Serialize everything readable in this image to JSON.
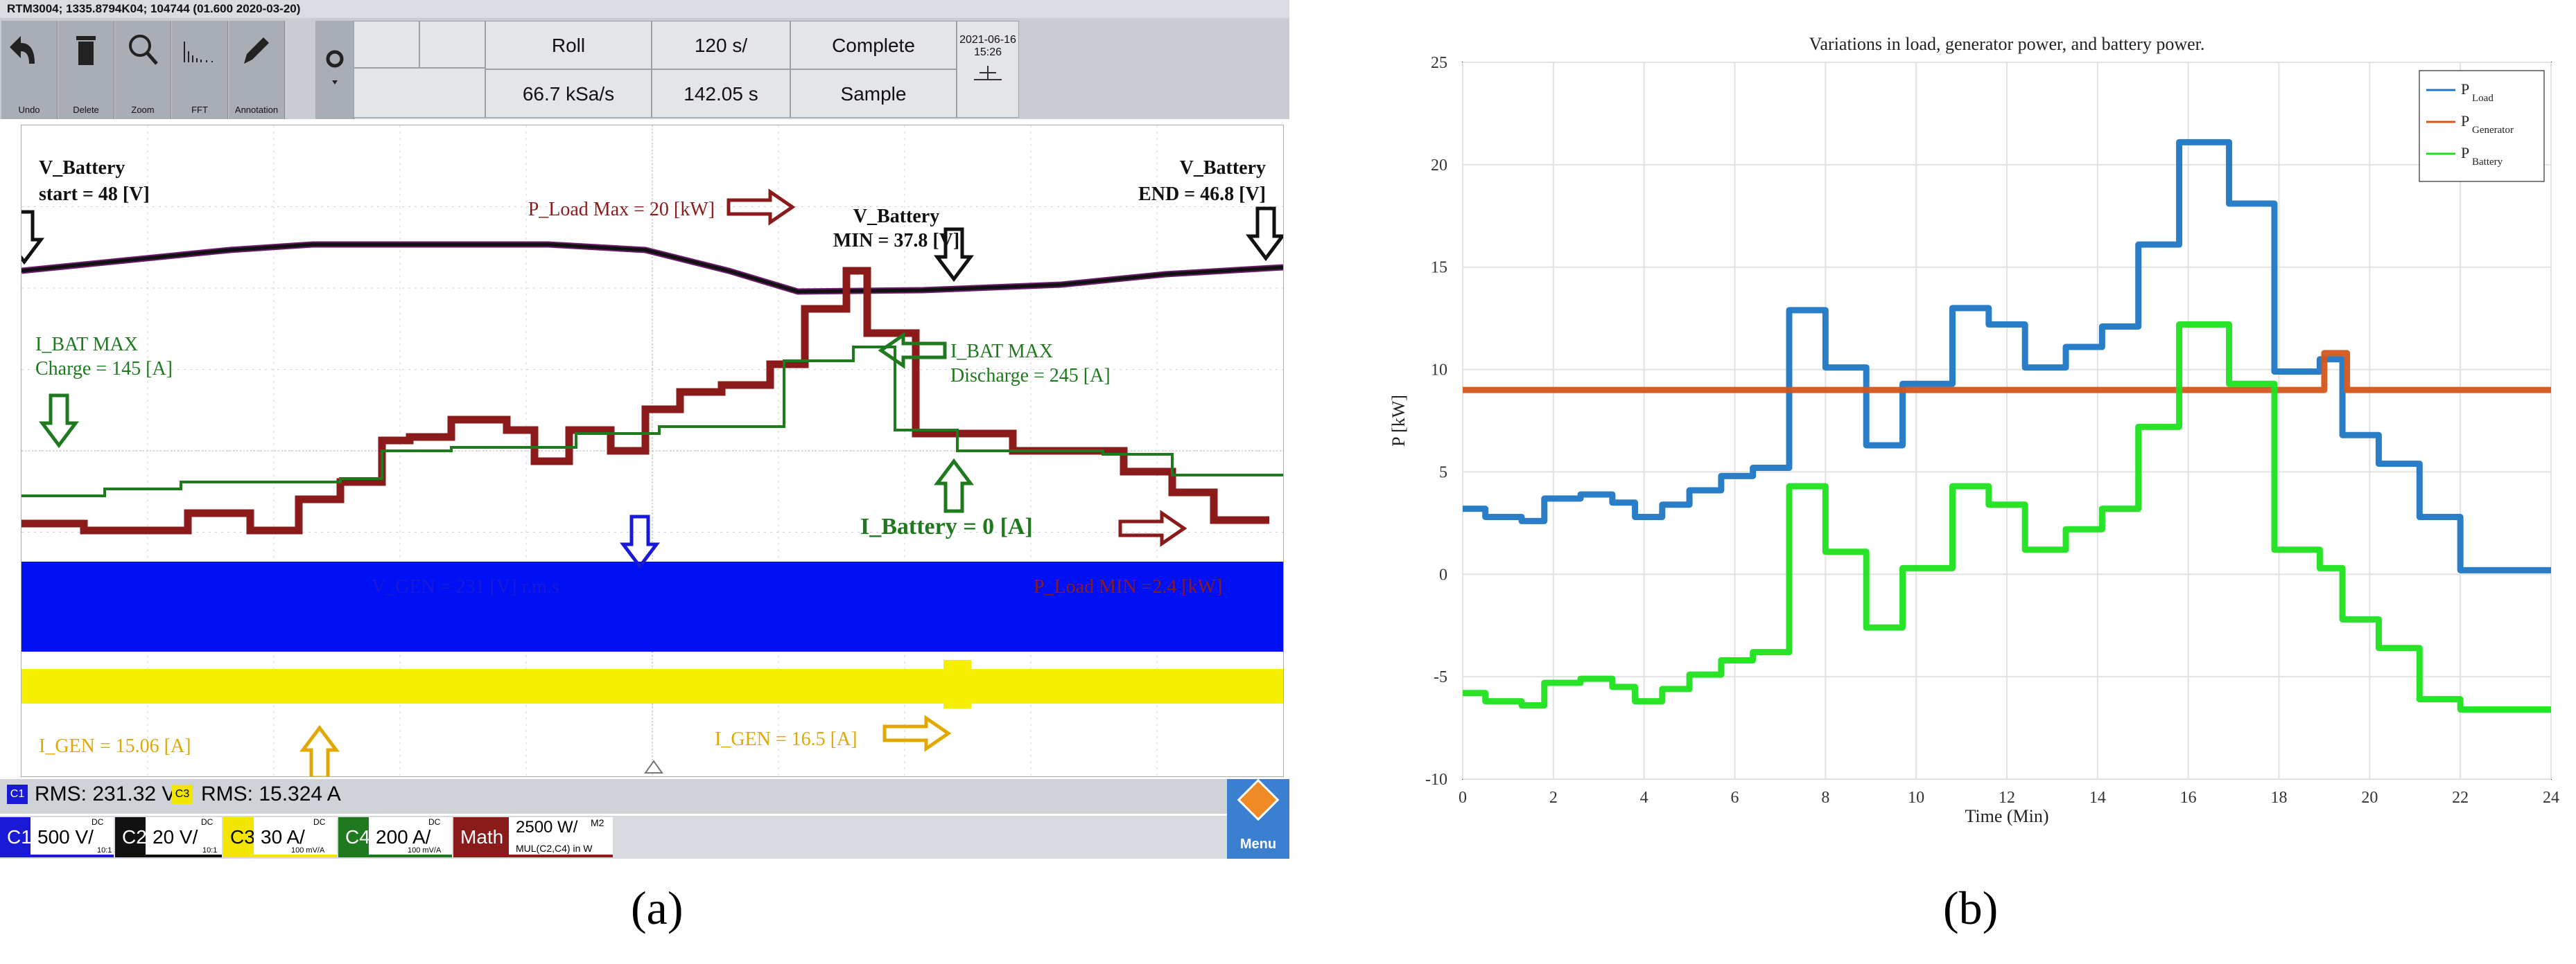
{
  "panel_labels": {
    "a": "(a)",
    "b": "(b)"
  },
  "scope": {
    "title": "RTM3004; 1335.8794K04; 104744 (01.600 2020-03-20)",
    "toolbar": [
      {
        "label": "Undo",
        "icon": "undo-icon"
      },
      {
        "label": "Delete",
        "icon": "trash-icon"
      },
      {
        "label": "Zoom",
        "icon": "zoom-icon"
      },
      {
        "label": "FFT",
        "icon": "fft-icon"
      },
      {
        "label": "Annotation",
        "icon": "pencil-icon"
      }
    ],
    "acq": {
      "mode": "Roll",
      "rate": "66.7 kSa/s",
      "timebase": "120 s/",
      "position": "142.05 s",
      "status": "Complete",
      "sample": "Sample",
      "date": "2021-06-16",
      "time": "15:26"
    },
    "annotations": [
      {
        "text": "V_Battery",
        "color": "#111111"
      },
      {
        "text": "start = 48 [V]",
        "color": "#111111"
      },
      {
        "text": "V_Battery",
        "color": "#111111"
      },
      {
        "text": "END = 46.8 [V]",
        "color": "#111111"
      },
      {
        "text": "P_Load Max = 20 [kW]",
        "color": "#8b1a1a"
      },
      {
        "text": "V_Battery",
        "color": "#111111"
      },
      {
        "text": "MIN = 37.8 [V]",
        "color": "#111111"
      },
      {
        "text": "I_BAT MAX",
        "color": "#1f7a1f"
      },
      {
        "text": "Charge = 145 [A]",
        "color": "#1f7a1f"
      },
      {
        "text": "I_BAT MAX",
        "color": "#1f7a1f"
      },
      {
        "text": "Discharge = 245 [A]",
        "color": "#1f7a1f"
      },
      {
        "text": "I_Battery = 0 [A]",
        "color": "#1f7a1f"
      },
      {
        "text": "P_Load MIN =2.4 [kW]",
        "color": "#8b1a1a"
      },
      {
        "text": "V_GEN = 231 [V] r.m.s",
        "color": "#1a1ad6"
      },
      {
        "text": "I_GEN = 15.06 [A]",
        "color": "#e0a800"
      },
      {
        "text": "I_GEN = 16.5 [A]",
        "color": "#e0a800"
      }
    ],
    "status": {
      "c1_tag": "C1",
      "c1_rms": "RMS: 231.32 V",
      "c3_tag": "C3",
      "c3_rms": "RMS: 15.324 A"
    },
    "channels": [
      {
        "tag": "C1",
        "scale": "500 V/",
        "note": "DC",
        "color": "#1a1ad6"
      },
      {
        "tag": "C2",
        "scale": "20 V/",
        "note": "DC",
        "color": "#111111"
      },
      {
        "tag": "C3",
        "scale": "30 A/",
        "note": "DC",
        "color": "#f2e600"
      },
      {
        "tag": "C4",
        "scale": "200 A/",
        "note": "DC",
        "color": "#1f7a1f"
      },
      {
        "tag": "Math",
        "scale": "2500 W/",
        "note": "MUL(C2,C4) in W",
        "color": "#8b1a1a"
      }
    ],
    "menu_label": "Menu",
    "extra": {
      "dc_note": "DC",
      "m2": "M2",
      "c1_sub": "10:1",
      "c2_sub": "10:1",
      "c3_sub": "100 mV/A",
      "c4_sub": "100 mV/A"
    }
  },
  "chart_data": {
    "type": "line",
    "title": "Variations in load, generator power, and battery power.",
    "xlabel": "Time (Min)",
    "ylabel": "P [kW]",
    "xlim": [
      0,
      24
    ],
    "ylim": [
      -10,
      25
    ],
    "xticks": [
      0,
      2,
      4,
      6,
      8,
      10,
      12,
      14,
      16,
      18,
      20,
      22,
      24
    ],
    "yticks": [
      -10,
      -5,
      0,
      5,
      10,
      15,
      20,
      25
    ],
    "grid": true,
    "legend_position": "top-right",
    "series": [
      {
        "name": "P",
        "sub": "Load",
        "color": "#1f77c4",
        "steps": [
          [
            0,
            3.2
          ],
          [
            0.5,
            2.8
          ],
          [
            1.3,
            2.6
          ],
          [
            1.8,
            3.7
          ],
          [
            2.6,
            3.9
          ],
          [
            3.3,
            3.5
          ],
          [
            3.8,
            2.8
          ],
          [
            4.4,
            3.4
          ],
          [
            5.0,
            4.1
          ],
          [
            5.7,
            4.8
          ],
          [
            6.4,
            5.2
          ],
          [
            7.1,
            5.2
          ],
          [
            7.2,
            12.9
          ],
          [
            8.0,
            10.1
          ],
          [
            8.9,
            6.3
          ],
          [
            9.7,
            9.3
          ],
          [
            10.8,
            13.0
          ],
          [
            11.6,
            12.2
          ],
          [
            12.4,
            10.1
          ],
          [
            13.3,
            11.1
          ],
          [
            14.1,
            12.1
          ],
          [
            14.9,
            16.1
          ],
          [
            15.8,
            21.1
          ],
          [
            16.9,
            18.1
          ],
          [
            17.9,
            9.9
          ],
          [
            18.9,
            10.5
          ],
          [
            19.4,
            6.8
          ],
          [
            20.2,
            5.4
          ],
          [
            21.1,
            2.8
          ],
          [
            22.0,
            0.2
          ],
          [
            24,
            0.2
          ]
        ]
      },
      {
        "name": "P",
        "sub": "Generator",
        "color": "#d4561b",
        "steps": [
          [
            0,
            9.0
          ],
          [
            19.0,
            10.8
          ],
          [
            19.5,
            9.0
          ],
          [
            24,
            9.0
          ]
        ]
      },
      {
        "name": "P",
        "sub": "Battery",
        "color": "#1ee11e",
        "steps": [
          [
            0,
            -5.8
          ],
          [
            0.5,
            -6.2
          ],
          [
            1.3,
            -6.4
          ],
          [
            1.8,
            -5.3
          ],
          [
            2.6,
            -5.1
          ],
          [
            3.3,
            -5.5
          ],
          [
            3.8,
            -6.2
          ],
          [
            4.4,
            -5.6
          ],
          [
            5.0,
            -4.9
          ],
          [
            5.7,
            -4.2
          ],
          [
            6.4,
            -3.8
          ],
          [
            7.1,
            -3.8
          ],
          [
            7.2,
            4.3
          ],
          [
            8.0,
            1.1
          ],
          [
            8.9,
            -2.6
          ],
          [
            9.7,
            0.3
          ],
          [
            10.8,
            4.3
          ],
          [
            11.6,
            3.4
          ],
          [
            12.4,
            1.2
          ],
          [
            13.3,
            2.2
          ],
          [
            14.1,
            3.2
          ],
          [
            14.9,
            7.2
          ],
          [
            15.8,
            12.2
          ],
          [
            16.9,
            9.3
          ],
          [
            17.9,
            1.2
          ],
          [
            18.9,
            0.3
          ],
          [
            19.4,
            -2.2
          ],
          [
            20.2,
            -3.6
          ],
          [
            21.1,
            -6.1
          ],
          [
            22.0,
            -6.6
          ],
          [
            24,
            -6.6
          ]
        ]
      }
    ]
  }
}
